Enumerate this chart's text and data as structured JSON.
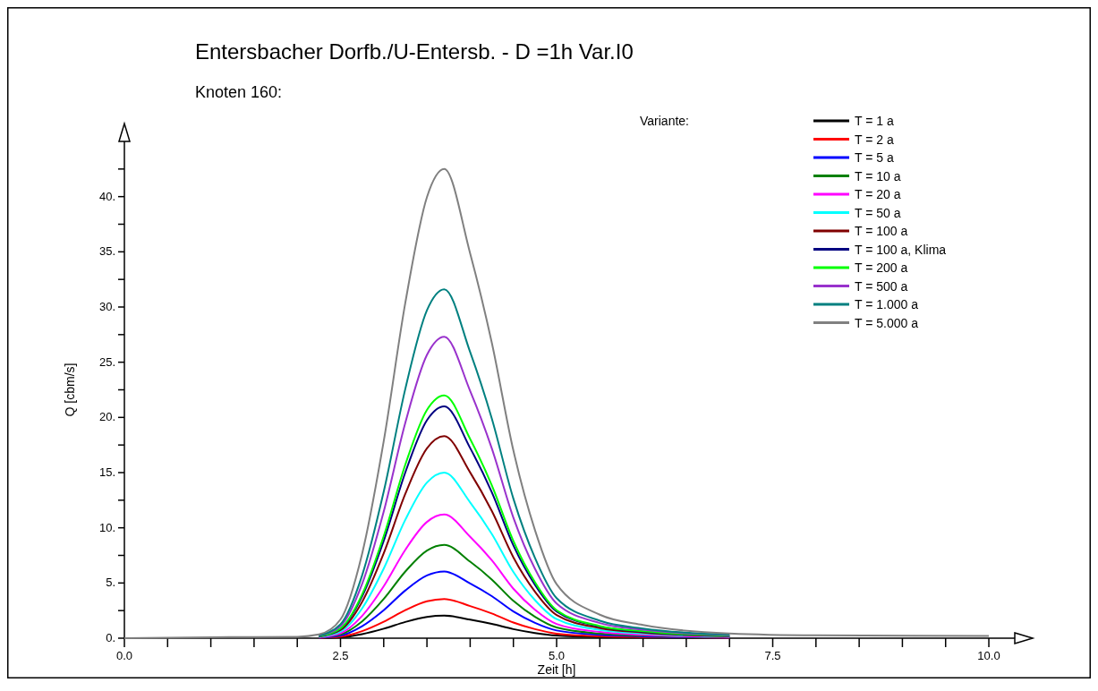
{
  "chart_data": {
    "type": "line",
    "title": "Entersbacher Dorfb./U-Entersb. - D =1h Var.I0",
    "subtitle": "Knoten 160:",
    "xlabel": "Zeit [h]",
    "ylabel": "Q [cbm/s]",
    "legend_title": "Variante:",
    "legend": "top right",
    "grid": false,
    "line_style": "solid",
    "x": [
      0,
      1,
      2,
      2.25,
      2.5,
      2.75,
      3,
      3.25,
      3.5,
      3.7,
      4,
      4.25,
      4.5,
      4.75,
      5,
      5.5,
      6,
      7,
      8,
      10
    ],
    "xlim": [
      0,
      10.3
    ],
    "ylim": [
      0,
      45
    ],
    "xticks": [
      {
        "value": 0,
        "label": "0.0"
      },
      {
        "value": 0.5,
        "label": null
      },
      {
        "value": 1,
        "label": null
      },
      {
        "value": 1.5,
        "label": null
      },
      {
        "value": 2,
        "label": null
      },
      {
        "value": 2.5,
        "label": "2.5"
      },
      {
        "value": 3,
        "label": null
      },
      {
        "value": 3.5,
        "label": null
      },
      {
        "value": 4,
        "label": null
      },
      {
        "value": 4.5,
        "label": null
      },
      {
        "value": 5,
        "label": "5.0"
      },
      {
        "value": 5.5,
        "label": null
      },
      {
        "value": 6,
        "label": null
      },
      {
        "value": 6.5,
        "label": null
      },
      {
        "value": 7,
        "label": null
      },
      {
        "value": 7.5,
        "label": "7.5"
      },
      {
        "value": 8,
        "label": null
      },
      {
        "value": 8.5,
        "label": null
      },
      {
        "value": 9,
        "label": null
      },
      {
        "value": 9.5,
        "label": null
      },
      {
        "value": 10,
        "label": "10.0"
      }
    ],
    "yticks": [
      {
        "value": 0,
        "label": "0."
      },
      {
        "value": 2.5,
        "label": null
      },
      {
        "value": 5,
        "label": "5."
      },
      {
        "value": 7.5,
        "label": null
      },
      {
        "value": 10,
        "label": "10."
      },
      {
        "value": 12.5,
        "label": null
      },
      {
        "value": 15,
        "label": "15."
      },
      {
        "value": 17.5,
        "label": null
      },
      {
        "value": 20,
        "label": "20."
      },
      {
        "value": 22.5,
        "label": null
      },
      {
        "value": 25,
        "label": "25."
      },
      {
        "value": 27.5,
        "label": null
      },
      {
        "value": 30,
        "label": "30."
      },
      {
        "value": 32.5,
        "label": null
      },
      {
        "value": 35,
        "label": "35."
      },
      {
        "value": 37.5,
        "label": null
      },
      {
        "value": 40,
        "label": "40."
      },
      {
        "value": 42.5,
        "label": null
      }
    ],
    "series": [
      {
        "name": "T = 1 a",
        "color": "#000000",
        "values": [
          null,
          null,
          null,
          0.02,
          0.08,
          0.37,
          0.86,
          1.47,
          1.93,
          2.05,
          1.68,
          1.29,
          0.82,
          0.47,
          0.24,
          0.1,
          0.06,
          0.02,
          null,
          null
        ]
      },
      {
        "name": "T = 2 a",
        "color": "#ff0000",
        "values": [
          null,
          null,
          null,
          0.03,
          0.14,
          0.64,
          1.49,
          2.54,
          3.34,
          3.55,
          2.91,
          2.24,
          1.42,
          0.82,
          0.41,
          0.18,
          0.1,
          0.04,
          null,
          null
        ]
      },
      {
        "name": "T = 5 a",
        "color": "#0000ff",
        "values": [
          null,
          null,
          null,
          0.05,
          0.24,
          1.09,
          2.54,
          4.33,
          5.69,
          6.05,
          4.96,
          3.81,
          2.42,
          1.39,
          0.7,
          0.3,
          0.17,
          0.06,
          null,
          null
        ]
      },
      {
        "name": "T = 10 a",
        "color": "#008000",
        "values": [
          null,
          null,
          null,
          0.07,
          0.34,
          1.52,
          3.55,
          6.04,
          7.94,
          8.45,
          6.93,
          5.32,
          3.38,
          1.94,
          0.97,
          0.42,
          0.24,
          0.08,
          null,
          null
        ]
      },
      {
        "name": "T = 20 a",
        "color": "#ff00ff",
        "values": [
          null,
          null,
          null,
          0.09,
          0.45,
          2.02,
          4.7,
          8.01,
          10.53,
          11.2,
          9.18,
          7.06,
          4.48,
          2.58,
          1.29,
          0.56,
          0.31,
          0.11,
          null,
          null
        ]
      },
      {
        "name": "T = 50 a",
        "color": "#00ffff",
        "values": [
          null,
          null,
          null,
          0.12,
          0.6,
          2.7,
          6.3,
          10.73,
          14.1,
          15.0,
          12.3,
          9.45,
          6.0,
          3.45,
          1.73,
          0.75,
          0.42,
          0.15,
          null,
          null
        ]
      },
      {
        "name": "T = 100 a",
        "color": "#800000",
        "values": [
          null,
          null,
          null,
          0.15,
          0.73,
          3.29,
          7.69,
          13.08,
          17.2,
          18.3,
          15.01,
          11.53,
          7.32,
          4.21,
          2.1,
          0.92,
          0.51,
          0.18,
          null,
          null
        ]
      },
      {
        "name": "T = 100 a, Klima",
        "color": "#000080",
        "values": [
          null,
          null,
          null,
          0.17,
          0.84,
          3.78,
          8.82,
          15.02,
          19.74,
          21.0,
          17.22,
          13.23,
          8.4,
          4.83,
          2.42,
          1.05,
          0.59,
          0.21,
          null,
          null
        ]
      },
      {
        "name": "T = 200 a",
        "color": "#00ff00",
        "values": [
          null,
          null,
          null,
          0.18,
          0.88,
          3.96,
          9.24,
          15.73,
          20.68,
          22.0,
          18.04,
          13.86,
          8.8,
          5.06,
          2.53,
          1.1,
          0.62,
          0.22,
          null,
          null
        ]
      },
      {
        "name": "T = 500 a",
        "color": "#9932cc",
        "values": [
          null,
          null,
          null,
          0.22,
          1.09,
          4.91,
          11.47,
          19.52,
          25.66,
          27.3,
          22.39,
          17.2,
          10.92,
          6.28,
          3.14,
          1.37,
          0.76,
          0.27,
          null,
          null
        ]
      },
      {
        "name": "T = 1.000 a",
        "color": "#008080",
        "values": [
          null,
          null,
          null,
          0.25,
          1.26,
          5.69,
          13.27,
          22.59,
          29.7,
          31.6,
          25.91,
          19.91,
          12.64,
          7.27,
          3.63,
          1.58,
          0.88,
          0.32,
          null,
          null
        ]
      },
      {
        "name": "T = 5.000 a",
        "color": "#808080",
        "values": [
          0,
          0.09,
          0.13,
          0.34,
          1.7,
          7.65,
          17.85,
          30.39,
          39.95,
          42.5,
          34.85,
          26.78,
          17.0,
          9.78,
          4.89,
          2.13,
          1.19,
          0.43,
          0.26,
          0.21
        ]
      }
    ]
  }
}
